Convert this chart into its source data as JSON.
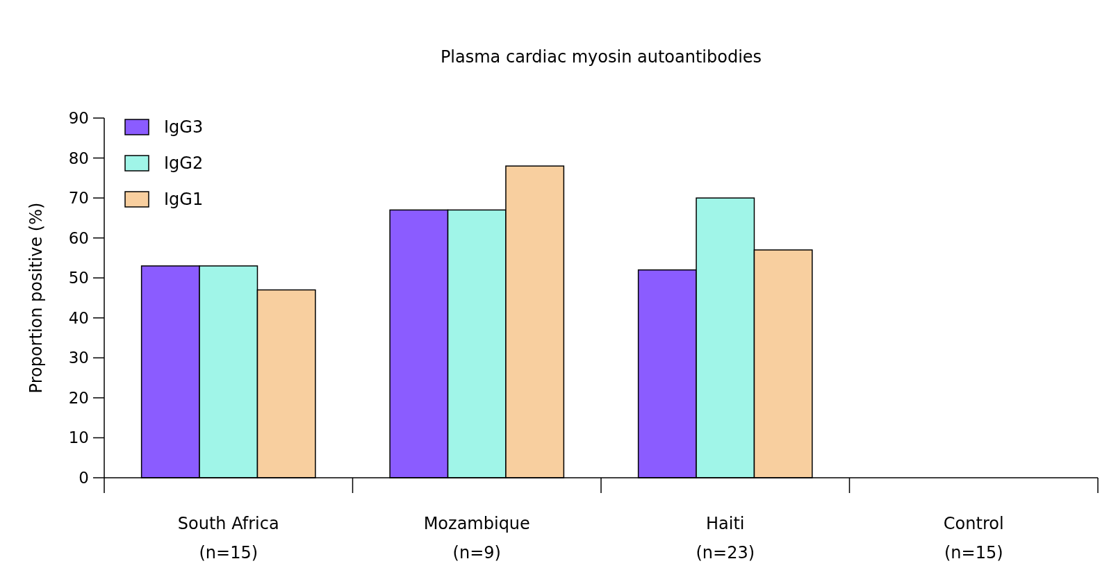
{
  "chart_data": {
    "type": "bar",
    "title": "Plasma cardiac myosin autoantibodies",
    "ylabel": "Proportion positive (%)",
    "categories": [
      "South Africa\n(n=15)",
      "Mozambique\n(n=9)",
      "Haiti\n(n=23)",
      "Control\n(n=15)"
    ],
    "series": [
      {
        "name": "IgG3",
        "color": "#8b5cff",
        "values": [
          53,
          67,
          52,
          0
        ]
      },
      {
        "name": "IgG2",
        "color": "#a0f5e8",
        "values": [
          53,
          67,
          70,
          0
        ]
      },
      {
        "name": "IgG1",
        "color": "#f8cf9f",
        "values": [
          47,
          78,
          57,
          0
        ]
      }
    ],
    "ylim": [
      0,
      90
    ],
    "yticks": [
      0,
      10,
      20,
      30,
      40,
      50,
      60,
      70,
      80,
      90
    ],
    "grid": false,
    "legend": "top left"
  }
}
